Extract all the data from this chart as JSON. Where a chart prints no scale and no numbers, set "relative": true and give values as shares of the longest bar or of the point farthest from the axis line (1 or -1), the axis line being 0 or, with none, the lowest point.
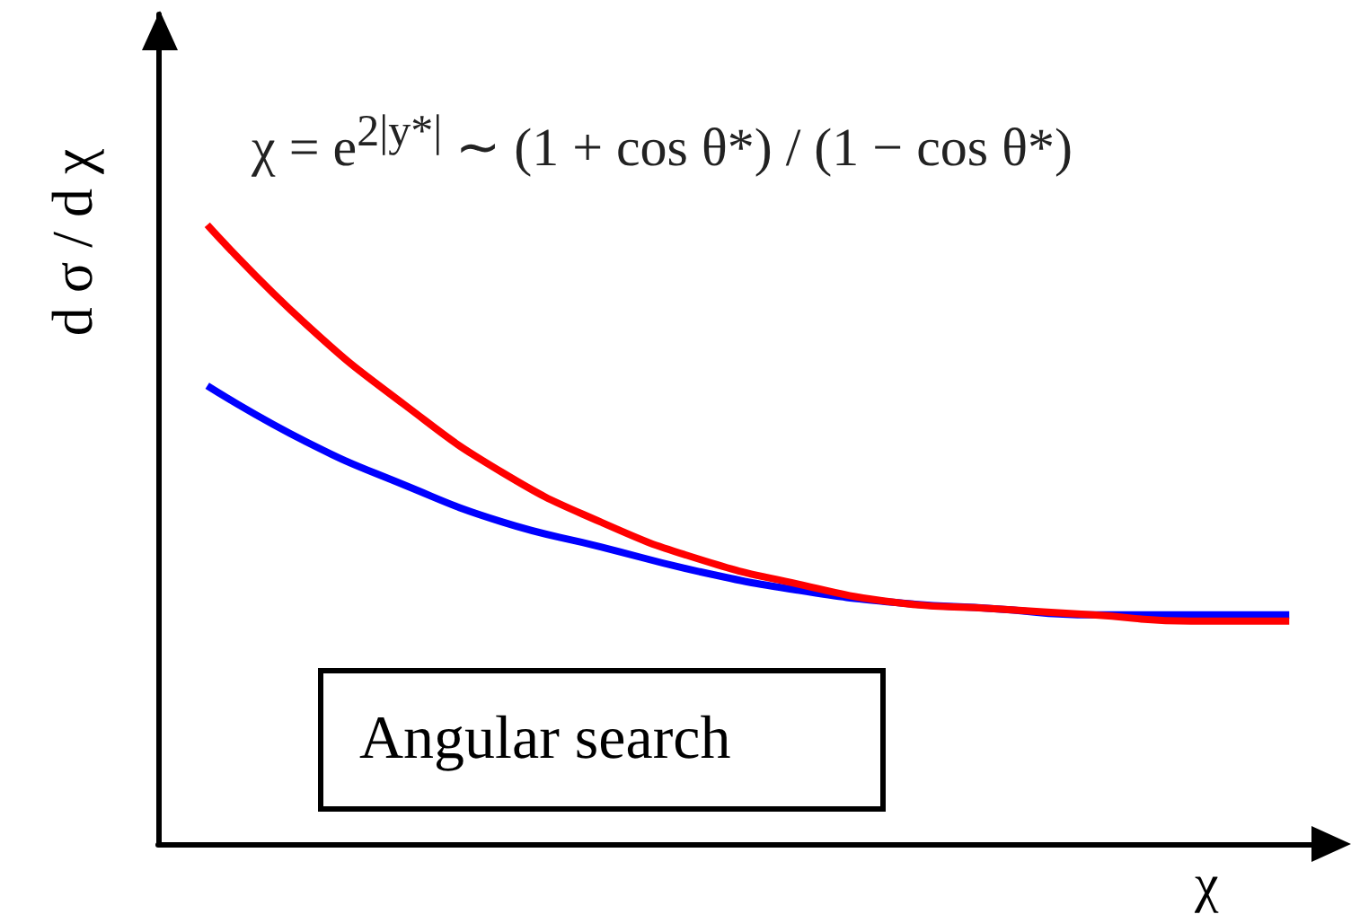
{
  "chart_data": {
    "type": "line",
    "relative": true,
    "xlabel": "χ",
    "ylabel": "d σ / d χ",
    "categories": [
      null,
      null,
      null,
      null,
      null,
      null,
      null,
      null,
      null,
      null,
      null,
      null
    ],
    "series": [
      {
        "color": "#0000ff",
        "values": [
          0.74,
          0.65,
          0.58,
          0.52,
          0.48,
          0.44,
          0.41,
          0.39,
          0.38,
          0.37,
          0.37,
          0.37
        ]
      },
      {
        "color": "#ff0000",
        "values": [
          1,
          0.84,
          0.71,
          0.6,
          0.52,
          0.46,
          0.42,
          0.39,
          0.38,
          0.37,
          0.36,
          0.36
        ]
      }
    ],
    "annotations": [
      "χ = e$^{2|y*|}$ ∼ (1 + cos θ*) / (1 − cos θ*)",
      "Angular search"
    ],
    "grid": false,
    "marker": "none",
    "line_style": "solid"
  }
}
